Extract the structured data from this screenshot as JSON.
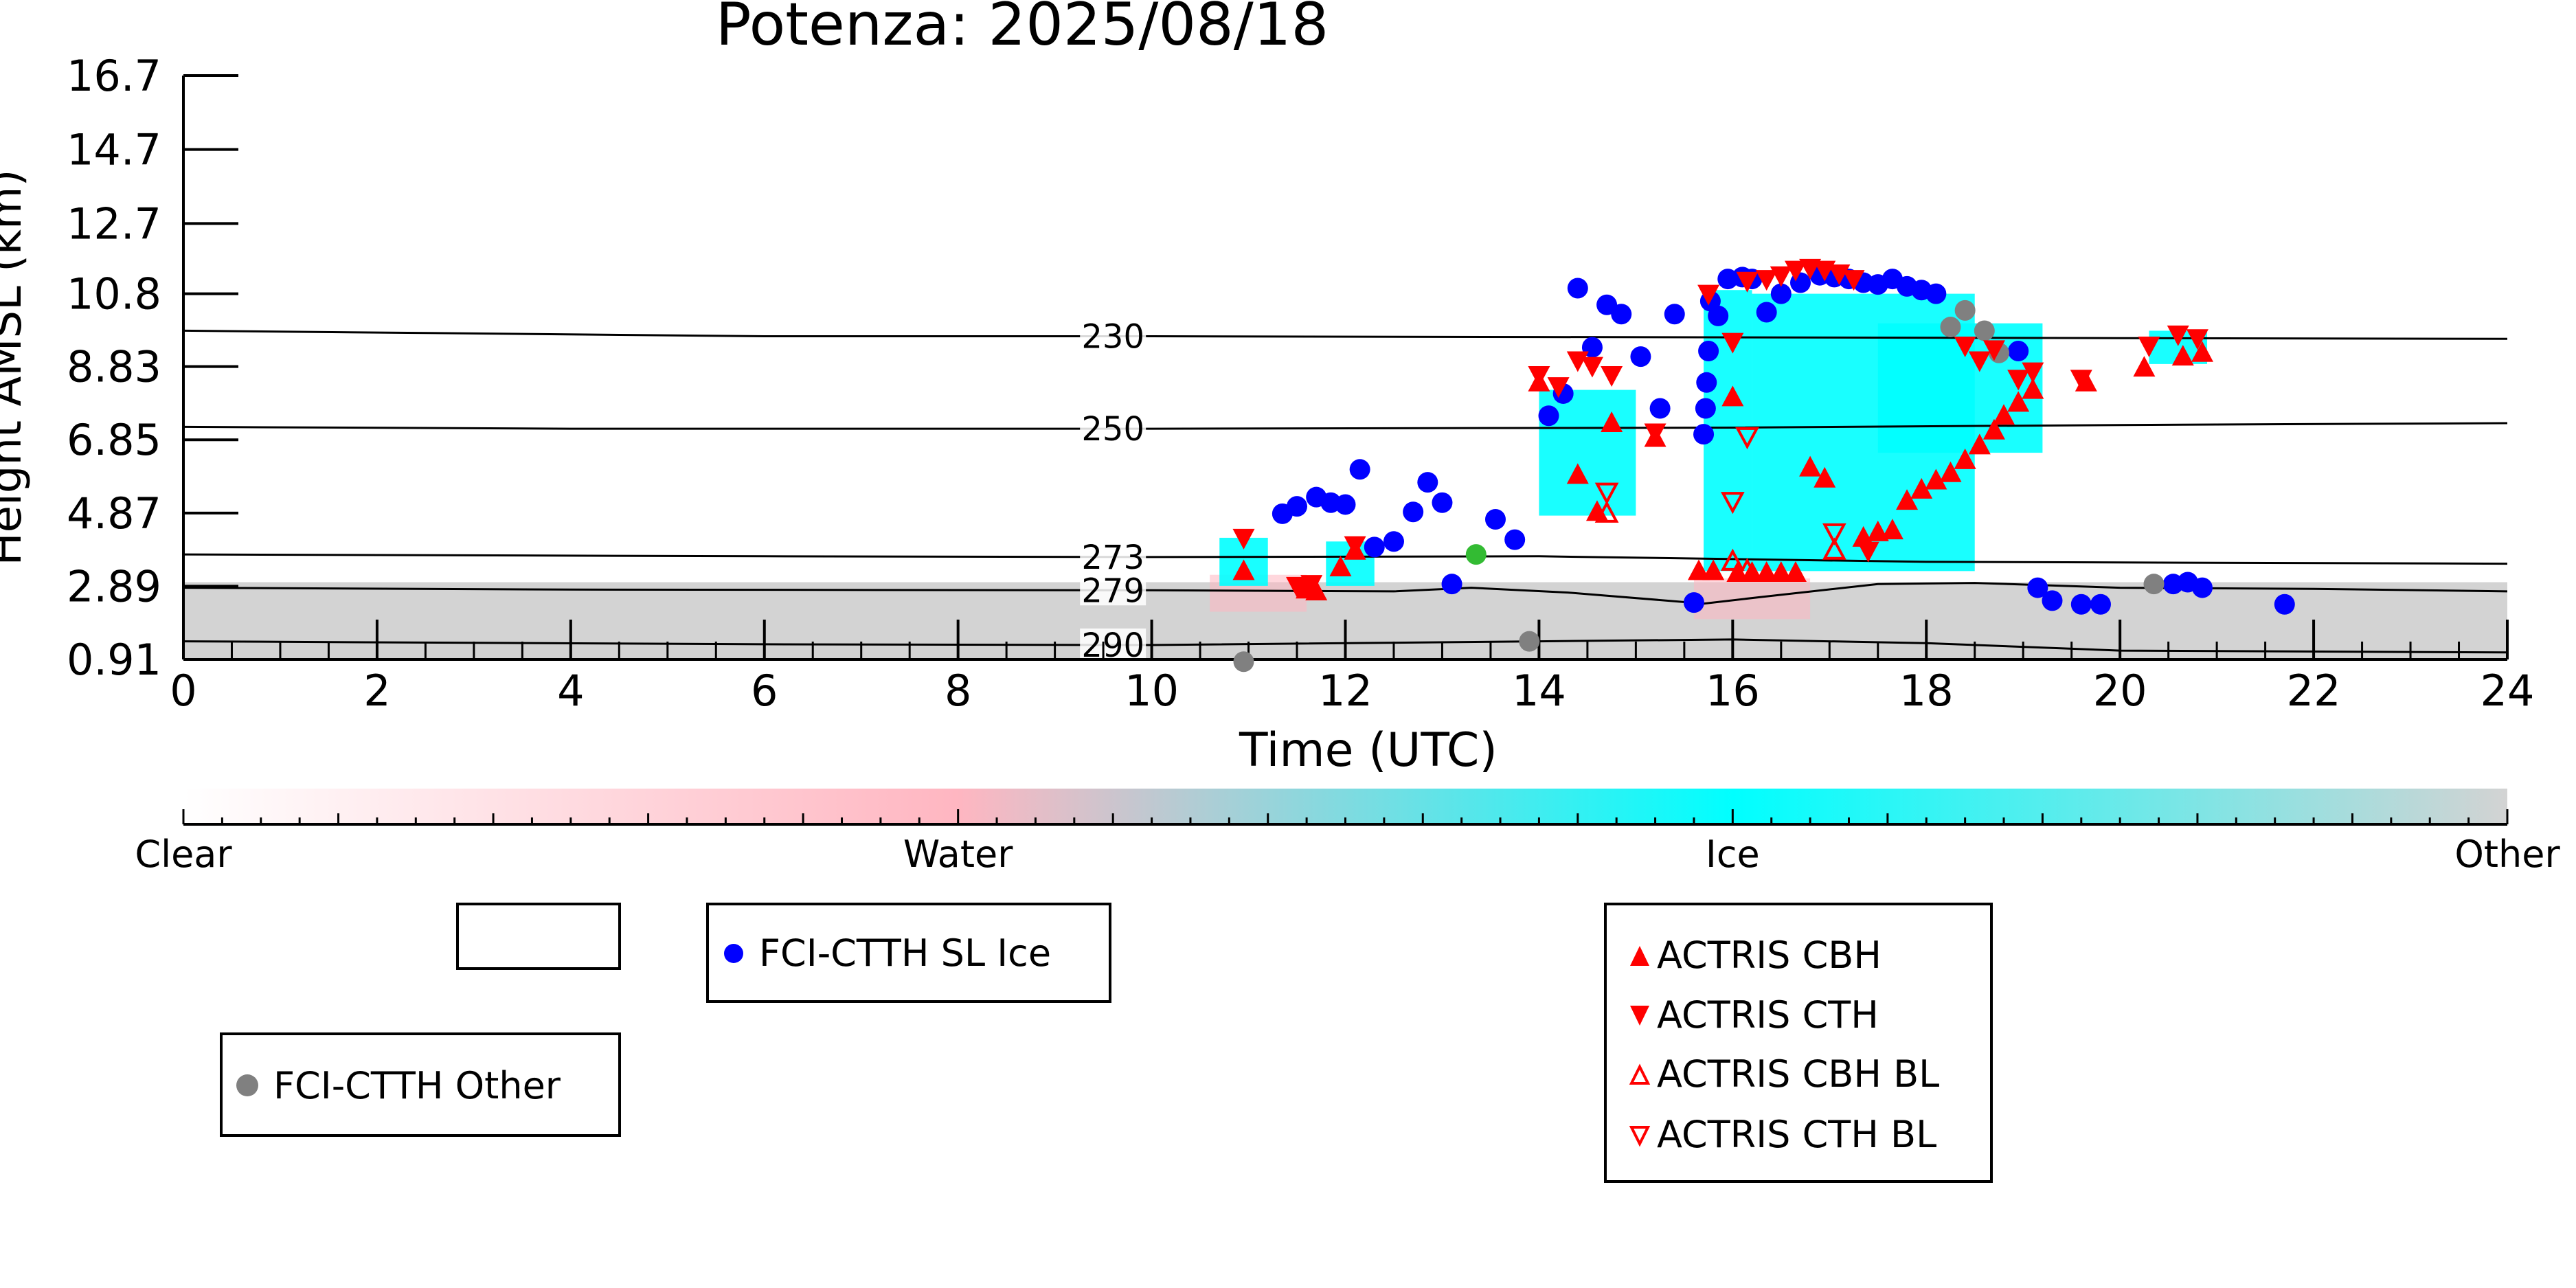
{
  "chart_data": {
    "type": "scatter",
    "title": "Potenza: 2025/08/18",
    "xlabel": "Time (UTC)",
    "ylabel": "Height AMSL (km)",
    "xlim": [
      0,
      24
    ],
    "ylim": [
      0.91,
      16.7
    ],
    "x_ticks": [
      "0",
      "2",
      "4",
      "6",
      "8",
      "10",
      "12",
      "14",
      "16",
      "18",
      "20",
      "22",
      "24"
    ],
    "y_ticks": [
      "0.91",
      "2.89",
      "4.87",
      "6.85",
      "8.83",
      "10.8",
      "12.7",
      "14.7",
      "16.7"
    ],
    "colorbar": {
      "labels": [
        "Clear",
        "Water",
        "Ice",
        "Other"
      ],
      "colors": [
        "#ffffff",
        "#ffb6c1",
        "#00ffff",
        "#d3d3d3"
      ]
    },
    "isotherms": [
      {
        "label": "230",
        "points": [
          [
            0,
            9.8
          ],
          [
            6,
            9.65
          ],
          [
            10,
            9.65
          ],
          [
            14,
            9.63
          ],
          [
            20,
            9.6
          ],
          [
            24,
            9.58
          ]
        ]
      },
      {
        "label": "250",
        "points": [
          [
            0,
            7.2
          ],
          [
            4,
            7.15
          ],
          [
            10,
            7.15
          ],
          [
            16,
            7.18
          ],
          [
            20,
            7.25
          ],
          [
            24,
            7.3
          ]
        ]
      },
      {
        "label": "273",
        "points": [
          [
            0,
            3.75
          ],
          [
            6,
            3.7
          ],
          [
            10,
            3.68
          ],
          [
            14,
            3.7
          ],
          [
            18,
            3.55
          ],
          [
            24,
            3.5
          ]
        ]
      },
      {
        "label": "279",
        "points": [
          [
            0,
            2.85
          ],
          [
            4,
            2.8
          ],
          [
            10,
            2.78
          ],
          [
            12.5,
            2.75
          ],
          [
            13.3,
            2.85
          ],
          [
            14.3,
            2.72
          ],
          [
            15.7,
            2.42
          ],
          [
            16.3,
            2.6
          ],
          [
            17.5,
            2.95
          ],
          [
            18.5,
            2.98
          ],
          [
            20,
            2.85
          ],
          [
            22,
            2.82
          ],
          [
            24,
            2.75
          ]
        ]
      },
      {
        "label": "290",
        "points": [
          [
            0,
            1.4
          ],
          [
            6,
            1.32
          ],
          [
            10,
            1.3
          ],
          [
            14,
            1.4
          ],
          [
            16,
            1.45
          ],
          [
            18,
            1.35
          ],
          [
            20,
            1.15
          ],
          [
            24,
            1.1
          ]
        ]
      }
    ],
    "background_other": {
      "x_range": [
        0,
        24
      ],
      "y_range": [
        0.91,
        3.0
      ]
    },
    "ice_regions": [
      {
        "x": [
          10.7,
          11.2
        ],
        "y": [
          2.9,
          4.2
        ]
      },
      {
        "x": [
          11.8,
          12.3
        ],
        "y": [
          2.9,
          4.1
        ]
      },
      {
        "x": [
          14.0,
          15.0
        ],
        "y": [
          4.8,
          8.2
        ]
      },
      {
        "x": [
          15.7,
          16.2
        ],
        "y": [
          3.3,
          10.9
        ]
      },
      {
        "x": [
          16.2,
          18.5
        ],
        "y": [
          3.3,
          10.8
        ]
      },
      {
        "x": [
          17.5,
          19.2
        ],
        "y": [
          6.5,
          10.0
        ]
      },
      {
        "x": [
          20.3,
          20.9
        ],
        "y": [
          8.9,
          9.8
        ]
      }
    ],
    "water_regions": [
      {
        "x": [
          10.6,
          11.6
        ],
        "y": [
          2.2,
          3.2
        ]
      },
      {
        "x": [
          15.6,
          16.8
        ],
        "y": [
          2.0,
          3.1
        ]
      }
    ],
    "series": [
      {
        "name": "FCI-CTTH SL Ice",
        "marker": "circle",
        "color": "#0000ff",
        "points": [
          [
            11.35,
            4.85
          ],
          [
            11.5,
            5.05
          ],
          [
            11.7,
            5.3
          ],
          [
            11.85,
            5.15
          ],
          [
            12.0,
            5.1
          ],
          [
            12.15,
            6.05
          ],
          [
            12.3,
            3.95
          ],
          [
            12.5,
            4.1
          ],
          [
            12.7,
            4.9
          ],
          [
            12.85,
            5.7
          ],
          [
            13.0,
            5.15
          ],
          [
            13.1,
            2.95
          ],
          [
            13.55,
            4.7
          ],
          [
            13.75,
            4.15
          ],
          [
            14.1,
            7.5
          ],
          [
            14.25,
            8.1
          ],
          [
            14.4,
            10.95
          ],
          [
            14.55,
            9.35
          ],
          [
            14.7,
            10.5
          ],
          [
            14.85,
            10.25
          ],
          [
            15.05,
            9.1
          ],
          [
            15.25,
            7.7
          ],
          [
            15.4,
            10.25
          ],
          [
            15.6,
            2.45
          ],
          [
            15.7,
            7.0
          ],
          [
            15.72,
            7.7
          ],
          [
            15.73,
            8.4
          ],
          [
            15.75,
            9.25
          ],
          [
            15.77,
            10.6
          ],
          [
            15.85,
            10.2
          ],
          [
            15.95,
            11.2
          ],
          [
            16.1,
            11.25
          ],
          [
            16.2,
            11.2
          ],
          [
            16.35,
            10.3
          ],
          [
            16.5,
            10.8
          ],
          [
            16.7,
            11.1
          ],
          [
            16.9,
            11.3
          ],
          [
            17.05,
            11.25
          ],
          [
            17.2,
            11.2
          ],
          [
            17.35,
            11.1
          ],
          [
            17.5,
            11.05
          ],
          [
            17.65,
            11.2
          ],
          [
            17.8,
            11.0
          ],
          [
            17.95,
            10.9
          ],
          [
            18.1,
            10.8
          ],
          [
            18.95,
            9.25
          ],
          [
            19.15,
            2.85
          ],
          [
            19.3,
            2.5
          ],
          [
            19.6,
            2.4
          ],
          [
            19.8,
            2.4
          ],
          [
            20.55,
            2.95
          ],
          [
            20.7,
            3.0
          ],
          [
            20.85,
            2.85
          ],
          [
            21.7,
            2.4
          ]
        ]
      },
      {
        "name": "FCI-CTTH Other",
        "marker": "circle",
        "color": "#808080",
        "points": [
          [
            10.95,
            0.85
          ],
          [
            13.9,
            1.4
          ],
          [
            18.25,
            9.9
          ],
          [
            18.4,
            10.35
          ],
          [
            18.6,
            9.8
          ],
          [
            18.75,
            9.2
          ],
          [
            20.35,
            2.95
          ]
        ]
      },
      {
        "name": "",
        "marker": "circle",
        "color": "#33bb33",
        "points": [
          [
            13.35,
            3.75
          ]
        ]
      },
      {
        "name": "ACTRIS CBH",
        "marker": "triangle-up",
        "color": "#ff0000",
        "points": [
          [
            10.95,
            3.3
          ],
          [
            11.6,
            2.8
          ],
          [
            11.7,
            2.75
          ],
          [
            11.95,
            3.4
          ],
          [
            12.1,
            3.85
          ],
          [
            14.0,
            8.4
          ],
          [
            14.4,
            5.9
          ],
          [
            14.6,
            4.9
          ],
          [
            14.75,
            7.3
          ],
          [
            15.2,
            6.9
          ],
          [
            15.65,
            3.3
          ],
          [
            15.8,
            3.3
          ],
          [
            16.0,
            8.0
          ],
          [
            16.05,
            3.25
          ],
          [
            16.2,
            3.25
          ],
          [
            16.35,
            3.25
          ],
          [
            16.5,
            3.25
          ],
          [
            16.65,
            3.25
          ],
          [
            16.8,
            6.1
          ],
          [
            16.95,
            5.8
          ],
          [
            17.35,
            4.2
          ],
          [
            17.5,
            4.35
          ],
          [
            17.65,
            4.4
          ],
          [
            17.8,
            5.2
          ],
          [
            17.95,
            5.5
          ],
          [
            18.1,
            5.75
          ],
          [
            18.25,
            5.95
          ],
          [
            18.4,
            6.3
          ],
          [
            18.55,
            6.7
          ],
          [
            18.7,
            7.1
          ],
          [
            18.8,
            7.5
          ],
          [
            18.95,
            7.85
          ],
          [
            19.1,
            8.2
          ],
          [
            19.65,
            8.4
          ],
          [
            20.25,
            8.8
          ],
          [
            20.65,
            9.1
          ],
          [
            20.85,
            9.2
          ]
        ]
      },
      {
        "name": "ACTRIS CTH",
        "marker": "triangle-down",
        "color": "#ff0000",
        "points": [
          [
            10.95,
            4.2
          ],
          [
            11.5,
            2.9
          ],
          [
            11.65,
            2.95
          ],
          [
            12.1,
            4.0
          ],
          [
            14.0,
            8.6
          ],
          [
            14.2,
            8.3
          ],
          [
            14.4,
            9.0
          ],
          [
            14.55,
            8.85
          ],
          [
            14.75,
            8.6
          ],
          [
            15.2,
            7.05
          ],
          [
            15.75,
            10.8
          ],
          [
            16.0,
            9.5
          ],
          [
            16.15,
            11.15
          ],
          [
            16.35,
            11.2
          ],
          [
            16.5,
            11.3
          ],
          [
            16.65,
            11.45
          ],
          [
            16.8,
            11.5
          ],
          [
            16.95,
            11.45
          ],
          [
            17.1,
            11.35
          ],
          [
            17.25,
            11.2
          ],
          [
            17.4,
            3.85
          ],
          [
            18.4,
            9.4
          ],
          [
            18.55,
            9.0
          ],
          [
            18.7,
            9.3
          ],
          [
            18.95,
            8.5
          ],
          [
            19.1,
            8.7
          ],
          [
            19.6,
            8.5
          ],
          [
            20.3,
            9.4
          ],
          [
            20.6,
            9.7
          ],
          [
            20.8,
            9.6
          ]
        ]
      },
      {
        "name": "ACTRIS CBH BL",
        "marker": "triangle-up-open",
        "color": "#ff0000",
        "points": [
          [
            14.7,
            4.85
          ],
          [
            16.0,
            3.55
          ],
          [
            16.15,
            3.3
          ],
          [
            17.05,
            3.85
          ]
        ]
      },
      {
        "name": "ACTRIS CTH BL",
        "marker": "triangle-down-open",
        "color": "#ff0000",
        "points": [
          [
            14.7,
            5.45
          ],
          [
            16.0,
            5.2
          ],
          [
            16.15,
            6.95
          ],
          [
            17.05,
            4.35
          ]
        ]
      }
    ]
  },
  "legend_boxes": {
    "empty": "",
    "sl_ice": [
      "FCI-CTTH SL Ice"
    ],
    "other": [
      "FCI-CTTH Other"
    ],
    "actris": [
      "ACTRIS CBH",
      "ACTRIS CTH",
      "ACTRIS CBH BL",
      "ACTRIS CTH BL"
    ]
  }
}
